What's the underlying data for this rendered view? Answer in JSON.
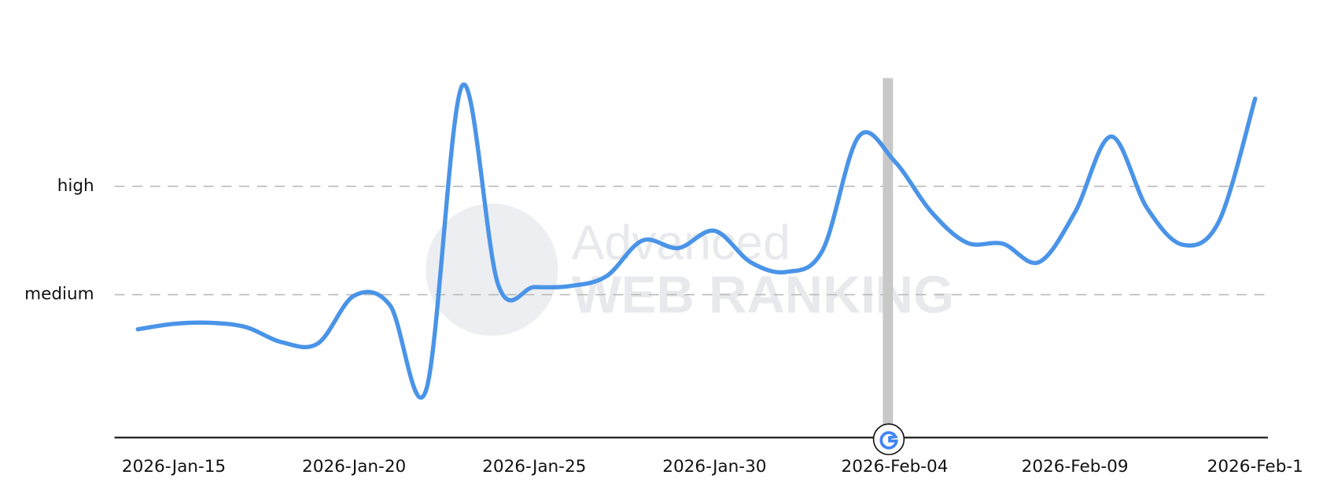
{
  "chart_data": {
    "type": "line",
    "watermark": [
      "Advanced",
      "WEB RANKING"
    ],
    "categories": [
      null,
      "2026-Jan-15",
      null,
      null,
      null,
      null,
      "2026-Jan-20",
      null,
      null,
      null,
      null,
      "2026-Jan-25",
      null,
      null,
      null,
      null,
      "2026-Jan-30",
      null,
      null,
      null,
      null,
      "2026-Feb-04",
      null,
      null,
      null,
      null,
      "2026-Feb-09",
      null,
      null,
      null,
      null,
      "2026-Feb-1"
    ],
    "series": [
      {
        "color": "#4a94e8",
        "values": [
          0.68,
          0.73,
          0.74,
          0.7,
          0.56,
          0.55,
          0.99,
          0.9,
          0.12,
          2.93,
          1.09,
          1.07,
          1.08,
          1.17,
          1.5,
          1.43,
          1.59,
          1.3,
          1.21,
          1.41,
          2.46,
          2.23,
          1.77,
          1.48,
          1.47,
          1.3,
          1.76,
          2.46,
          1.8,
          1.46,
          1.68,
          2.81
        ]
      }
    ],
    "ylim": [
      -0.32,
      3
    ],
    "yticks": [
      {
        "value": 1,
        "label": "medium"
      },
      {
        "value": 2,
        "label": "high"
      }
    ],
    "grid": true
  }
}
